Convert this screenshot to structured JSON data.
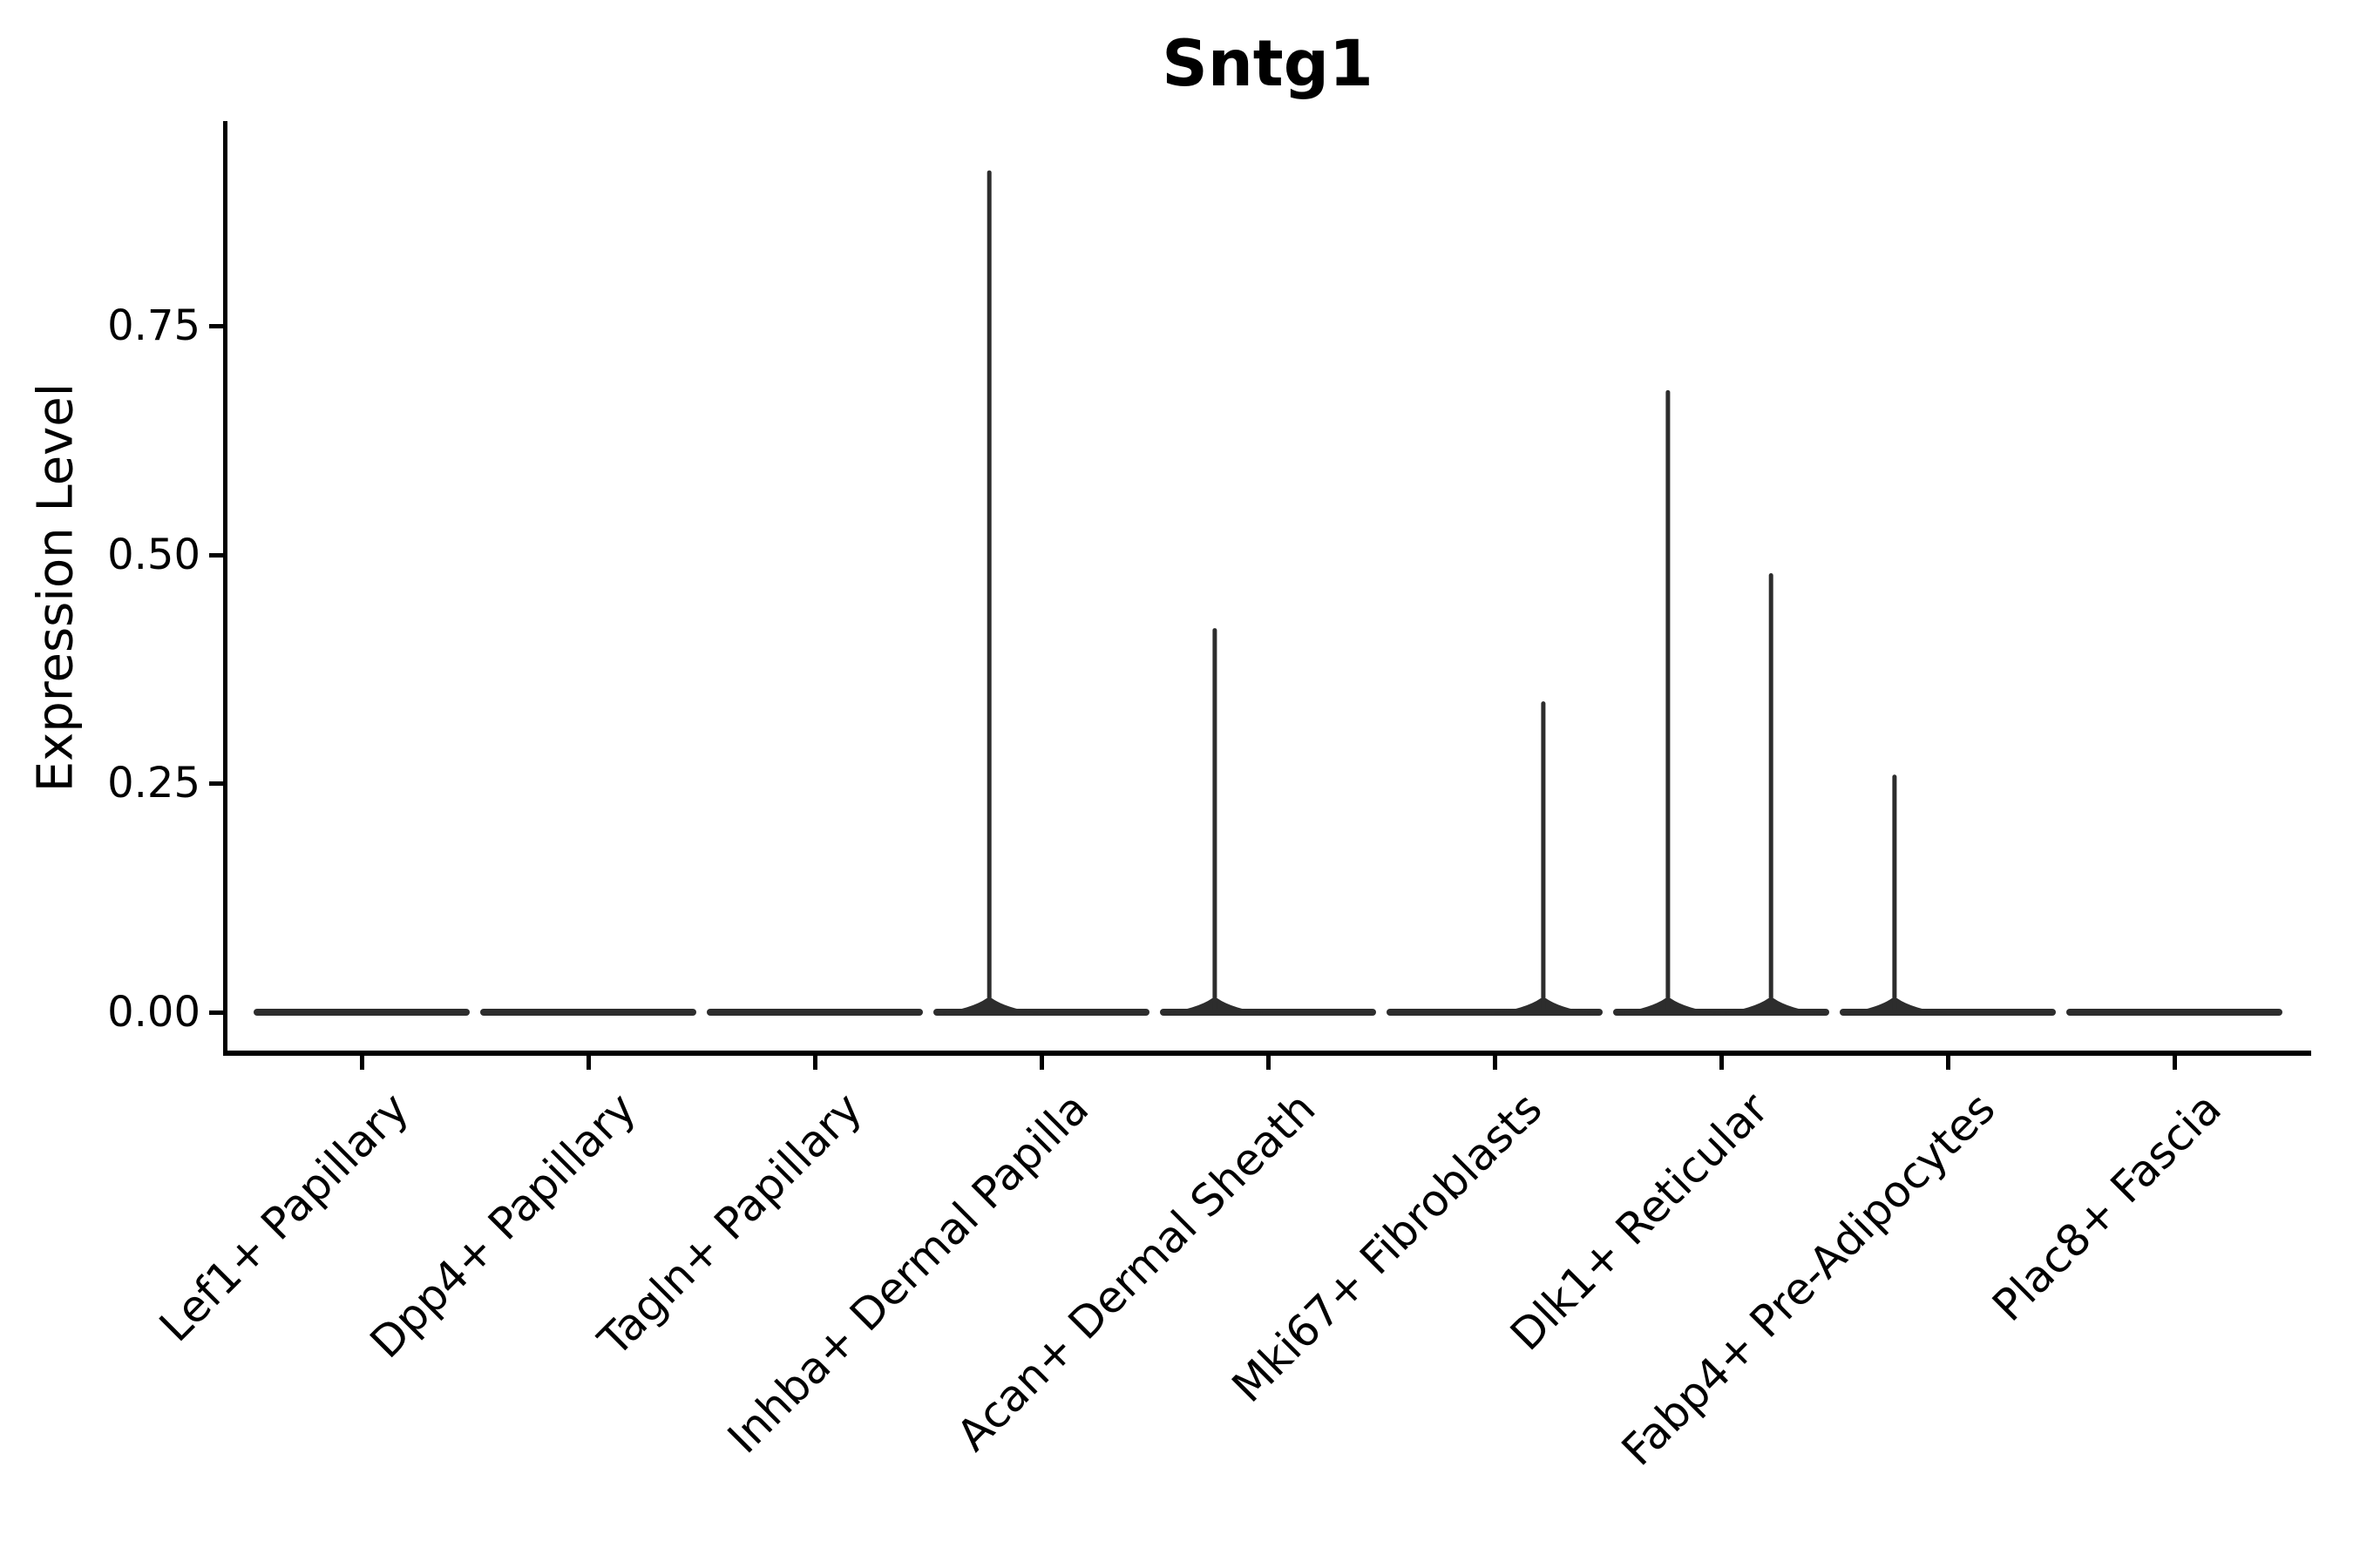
{
  "chart_data": {
    "type": "violin",
    "title": "Sntg1",
    "xlabel": "",
    "ylabel": "Expression Level",
    "ylim": [
      0,
      0.97
    ],
    "yticks": [
      0,
      0.25,
      0.5,
      0.75
    ],
    "ytick_labels": [
      "0.00",
      "0.25",
      "0.50",
      "0.75"
    ],
    "grid": false,
    "legend": null,
    "x_tick_rotation_deg": 45,
    "categories": [
      "Lef1+ Papillary",
      "Dpp4+ Papillary",
      "Tagln+ Papillary",
      "Inhba+ Dermal Papilla",
      "Acan+ Dermal Sheath",
      "Mki67+ Fibroblasts",
      "Dlk1+ Reticular",
      "Fabp4+ Pre-Adipocytes",
      "Plac8+ Fascia"
    ],
    "violins": [
      {
        "category": "Lef1+ Papillary",
        "baseline_expression": 0,
        "max_expression": 0,
        "spikes": []
      },
      {
        "category": "Dpp4+ Papillary",
        "baseline_expression": 0,
        "max_expression": 0,
        "spikes": []
      },
      {
        "category": "Tagln+ Papillary",
        "baseline_expression": 0,
        "max_expression": 0,
        "spikes": []
      },
      {
        "category": "Inhba+ Dermal Papilla",
        "baseline_expression": 0,
        "max_expression": 0.92,
        "spikes": [
          {
            "value": 0.92,
            "offset_frac": -0.23
          }
        ]
      },
      {
        "category": "Acan+ Dermal Sheath",
        "baseline_expression": 0,
        "max_expression": 0.42,
        "spikes": [
          {
            "value": 0.42,
            "offset_frac": -0.235
          }
        ]
      },
      {
        "category": "Mki67+ Fibroblasts",
        "baseline_expression": 0,
        "max_expression": 0.34,
        "spikes": [
          {
            "value": 0.34,
            "offset_frac": 0.215
          }
        ]
      },
      {
        "category": "Dlk1+ Reticular",
        "baseline_expression": 0,
        "max_expression": 0.68,
        "spikes": [
          {
            "value": 0.68,
            "offset_frac": -0.235
          },
          {
            "value": 0.48,
            "offset_frac": 0.22
          }
        ]
      },
      {
        "category": "Fabp4+ Pre-Adipocytes",
        "baseline_expression": 0,
        "max_expression": 0.26,
        "spikes": [
          {
            "value": 0.26,
            "offset_frac": -0.235
          }
        ]
      },
      {
        "category": "Plac8+ Fascia",
        "baseline_expression": 0,
        "max_expression": 0,
        "spikes": []
      }
    ]
  },
  "style": {
    "background": "#ffffff",
    "violin_color": "#2d2d2d",
    "axis_color": "#000000",
    "text_color": "#000000"
  }
}
